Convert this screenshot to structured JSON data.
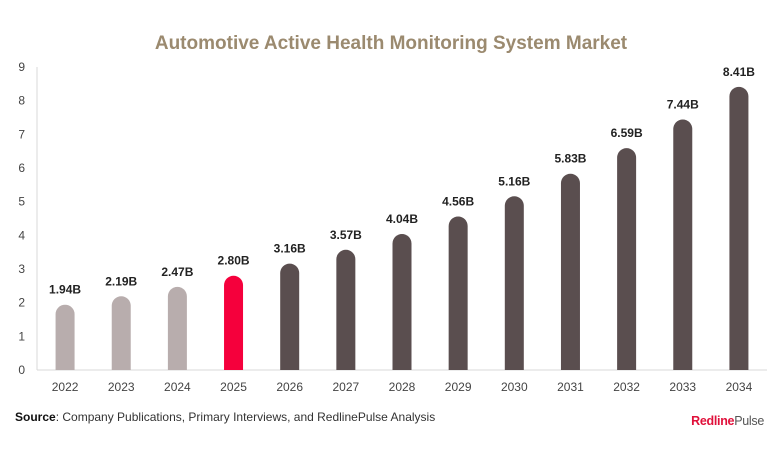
{
  "source": {
    "label": "Source",
    "text": ": Company Publications, Primary Interviews, and RedlinePulse Analysis"
  },
  "brand": {
    "part1": "Redline",
    "part2": "Pulse"
  },
  "colors": {
    "historical": "#b8adad",
    "base_year": "#f5003c",
    "forecast": "#5a4e4f",
    "title": "#9b8a6f"
  },
  "chart_data": {
    "type": "bar",
    "title": "Automotive Active Health Monitoring System Market",
    "xlabel": "",
    "ylabel": "",
    "ylim": [
      0,
      9
    ],
    "yticks": [
      "0",
      "1",
      "2",
      "3",
      "4",
      "5",
      "6",
      "7",
      "8",
      "9"
    ],
    "grid": false,
    "categories": [
      "2022",
      "2023",
      "2024",
      "2025",
      "2026",
      "2027",
      "2028",
      "2029",
      "2030",
      "2031",
      "2032",
      "2033",
      "2034"
    ],
    "values": [
      1.94,
      2.19,
      2.47,
      2.8,
      3.16,
      3.57,
      4.04,
      4.56,
      5.16,
      5.83,
      6.59,
      7.44,
      8.41
    ],
    "labels": [
      "1.94B",
      "2.19B",
      "2.47B",
      "2.80B",
      "3.16B",
      "3.57B",
      "4.04B",
      "4.56B",
      "5.16B",
      "5.83B",
      "6.59B",
      "7.44B",
      "8.41B"
    ],
    "bar_group": [
      "historical",
      "historical",
      "historical",
      "base_year",
      "forecast",
      "forecast",
      "forecast",
      "forecast",
      "forecast",
      "forecast",
      "forecast",
      "forecast",
      "forecast"
    ]
  }
}
